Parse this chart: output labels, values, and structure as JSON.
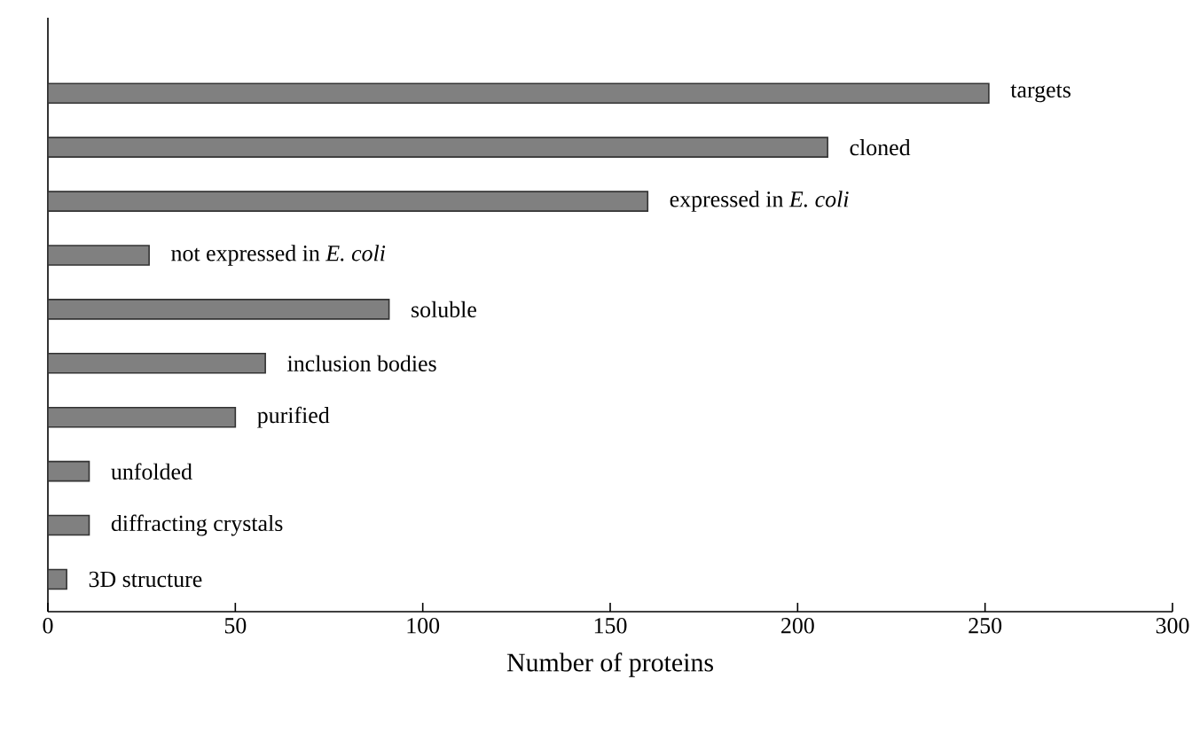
{
  "chart_data": {
    "type": "bar",
    "orientation": "horizontal",
    "xlabel": "Number of proteins",
    "categories": [
      "targets",
      "cloned",
      "expressed in *E. coli*",
      "not expressed in *E. coli*",
      "soluble",
      "inclusion bodies",
      "purified",
      "unfolded",
      "diffracting crystals",
      "3D structure"
    ],
    "values": [
      251,
      208,
      160,
      27,
      91,
      58,
      50,
      11,
      11,
      5
    ],
    "color": "#808080",
    "xlim": [
      0,
      300
    ],
    "xticks": [
      0,
      50,
      100,
      150,
      200,
      250,
      300
    ]
  }
}
